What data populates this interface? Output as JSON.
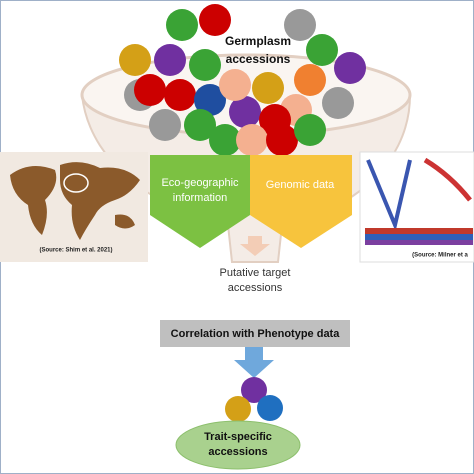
{
  "funnel": {
    "lines": [
      "Germplasm",
      "accessions"
    ]
  },
  "eco": {
    "lines": [
      "Eco-geographic",
      "information"
    ]
  },
  "genomic": {
    "lines": [
      "Genomic data"
    ]
  },
  "map_source": "(Source: Shim et al. 2021)",
  "plot_source": "(Source: Milner et a",
  "putative": {
    "lines": [
      "Putative target",
      "accessions"
    ]
  },
  "correlation": "Correlation with Phenotype data",
  "trait": {
    "lines": [
      "Trait-specific",
      "accessions"
    ]
  }
}
